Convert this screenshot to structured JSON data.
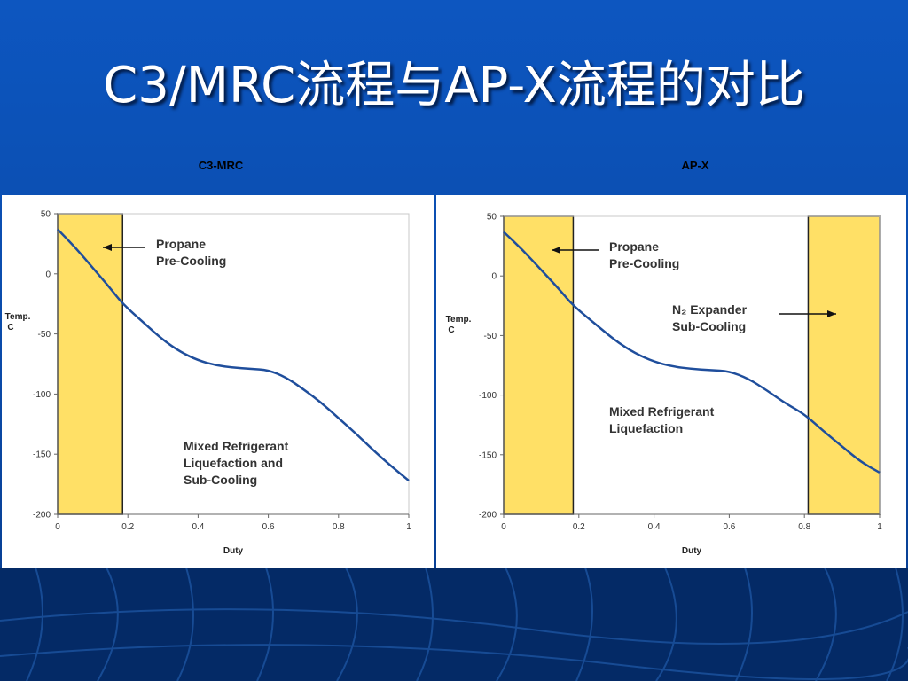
{
  "slide": {
    "title": "C3/MRC流程与AP-X流程的对比"
  },
  "theme": {
    "background": "#0a4aa8",
    "band_color": "#042a66",
    "highlight_fill": "#ffe066",
    "curve_color": "#1f4e9c"
  },
  "chart_data": [
    {
      "type": "line",
      "title": "C3-MRC",
      "xlabel": "Duty",
      "ylabel": "Temp.\nC",
      "xlim": [
        0,
        1
      ],
      "ylim": [
        -200,
        50
      ],
      "xticks": [
        "0",
        "0.2",
        "0.4",
        "0.6",
        "0.8",
        "1"
      ],
      "yticks": [
        "50",
        "0",
        "-50",
        "-100",
        "-150",
        "-200"
      ],
      "series": [
        {
          "x": [
            0,
            0.05,
            0.1,
            0.15,
            0.185,
            0.25,
            0.3,
            0.35,
            0.4,
            0.45,
            0.5,
            0.55,
            0.6,
            0.65,
            0.7,
            0.75,
            0.8,
            0.85,
            0.9,
            0.95,
            1.0
          ],
          "values": [
            37,
            22,
            5,
            -12,
            -25,
            -42,
            -55,
            -65,
            -72,
            -76,
            -78,
            -79,
            -80,
            -86,
            -96,
            -107,
            -120,
            -133,
            -147,
            -160,
            -172
          ]
        }
      ],
      "regions": [
        {
          "x": [
            0,
            0.185
          ],
          "label": "Propane Pre-Cooling"
        }
      ],
      "annotations": [
        {
          "lines": [
            "Propane",
            "Pre-Cooling"
          ]
        },
        {
          "lines": [
            "Mixed Refrigerant",
            "Liquefaction and",
            "Sub-Cooling"
          ]
        }
      ]
    },
    {
      "type": "line",
      "title": "AP-X",
      "xlabel": "Duty",
      "ylabel": "Temp.\nC",
      "xlim": [
        0,
        1
      ],
      "ylim": [
        -200,
        50
      ],
      "xticks": [
        "0",
        "0.2",
        "0.4",
        "0.6",
        "0.8",
        "1"
      ],
      "yticks": [
        "50",
        "0",
        "-50",
        "-100",
        "-150",
        "-200"
      ],
      "series": [
        {
          "x": [
            0,
            0.05,
            0.1,
            0.15,
            0.185,
            0.25,
            0.3,
            0.35,
            0.4,
            0.45,
            0.5,
            0.55,
            0.6,
            0.65,
            0.7,
            0.75,
            0.8,
            0.85,
            0.9,
            0.95,
            1.0
          ],
          "values": [
            37,
            22,
            5,
            -12,
            -25,
            -42,
            -55,
            -65,
            -72,
            -76,
            -78,
            -79,
            -80,
            -86,
            -96,
            -107,
            -116,
            -130,
            -143,
            -156,
            -165
          ]
        }
      ],
      "regions": [
        {
          "x": [
            0,
            0.185
          ],
          "label": "Propane Pre-Cooling"
        },
        {
          "x": [
            0.81,
            1.0
          ],
          "label": "N2 Expander Sub-Cooling"
        }
      ],
      "annotations": [
        {
          "lines": [
            "Propane",
            "Pre-Cooling"
          ]
        },
        {
          "lines": [
            "N₂ Expander",
            "Sub-Cooling"
          ]
        },
        {
          "lines": [
            "Mixed Refrigerant",
            "Liquefaction"
          ]
        }
      ]
    }
  ]
}
